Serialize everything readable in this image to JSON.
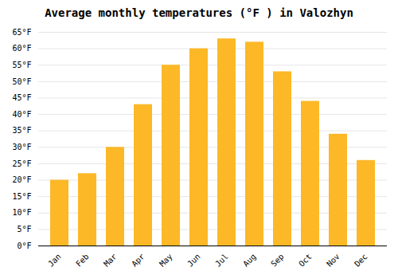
{
  "chart_data": {
    "type": "bar",
    "title": "Average monthly temperatures (°F ) in Valozhyn",
    "categories": [
      "Jan",
      "Feb",
      "Mar",
      "Apr",
      "May",
      "Jun",
      "Jul",
      "Aug",
      "Sep",
      "Oct",
      "Nov",
      "Dec"
    ],
    "values": [
      20,
      22,
      30,
      43,
      55,
      60,
      63,
      62,
      53,
      44,
      34,
      26
    ],
    "color": "#FDB827",
    "ylim": [
      0,
      65
    ],
    "yticks": [
      {
        "value": 0,
        "label": "0°F"
      },
      {
        "value": 5,
        "label": "5°F"
      },
      {
        "value": 10,
        "label": "10°F"
      },
      {
        "value": 15,
        "label": "15°F"
      },
      {
        "value": 20,
        "label": "20°F"
      },
      {
        "value": 25,
        "label": "25°F"
      },
      {
        "value": 30,
        "label": "30°F"
      },
      {
        "value": 35,
        "label": "35°F"
      },
      {
        "value": 40,
        "label": "40°F"
      },
      {
        "value": 45,
        "label": "45°F"
      },
      {
        "value": 50,
        "label": "50°F"
      },
      {
        "value": 55,
        "label": "55°F"
      },
      {
        "value": 60,
        "label": "60°F"
      },
      {
        "value": 65,
        "label": "65°F"
      }
    ],
    "grid": true
  }
}
